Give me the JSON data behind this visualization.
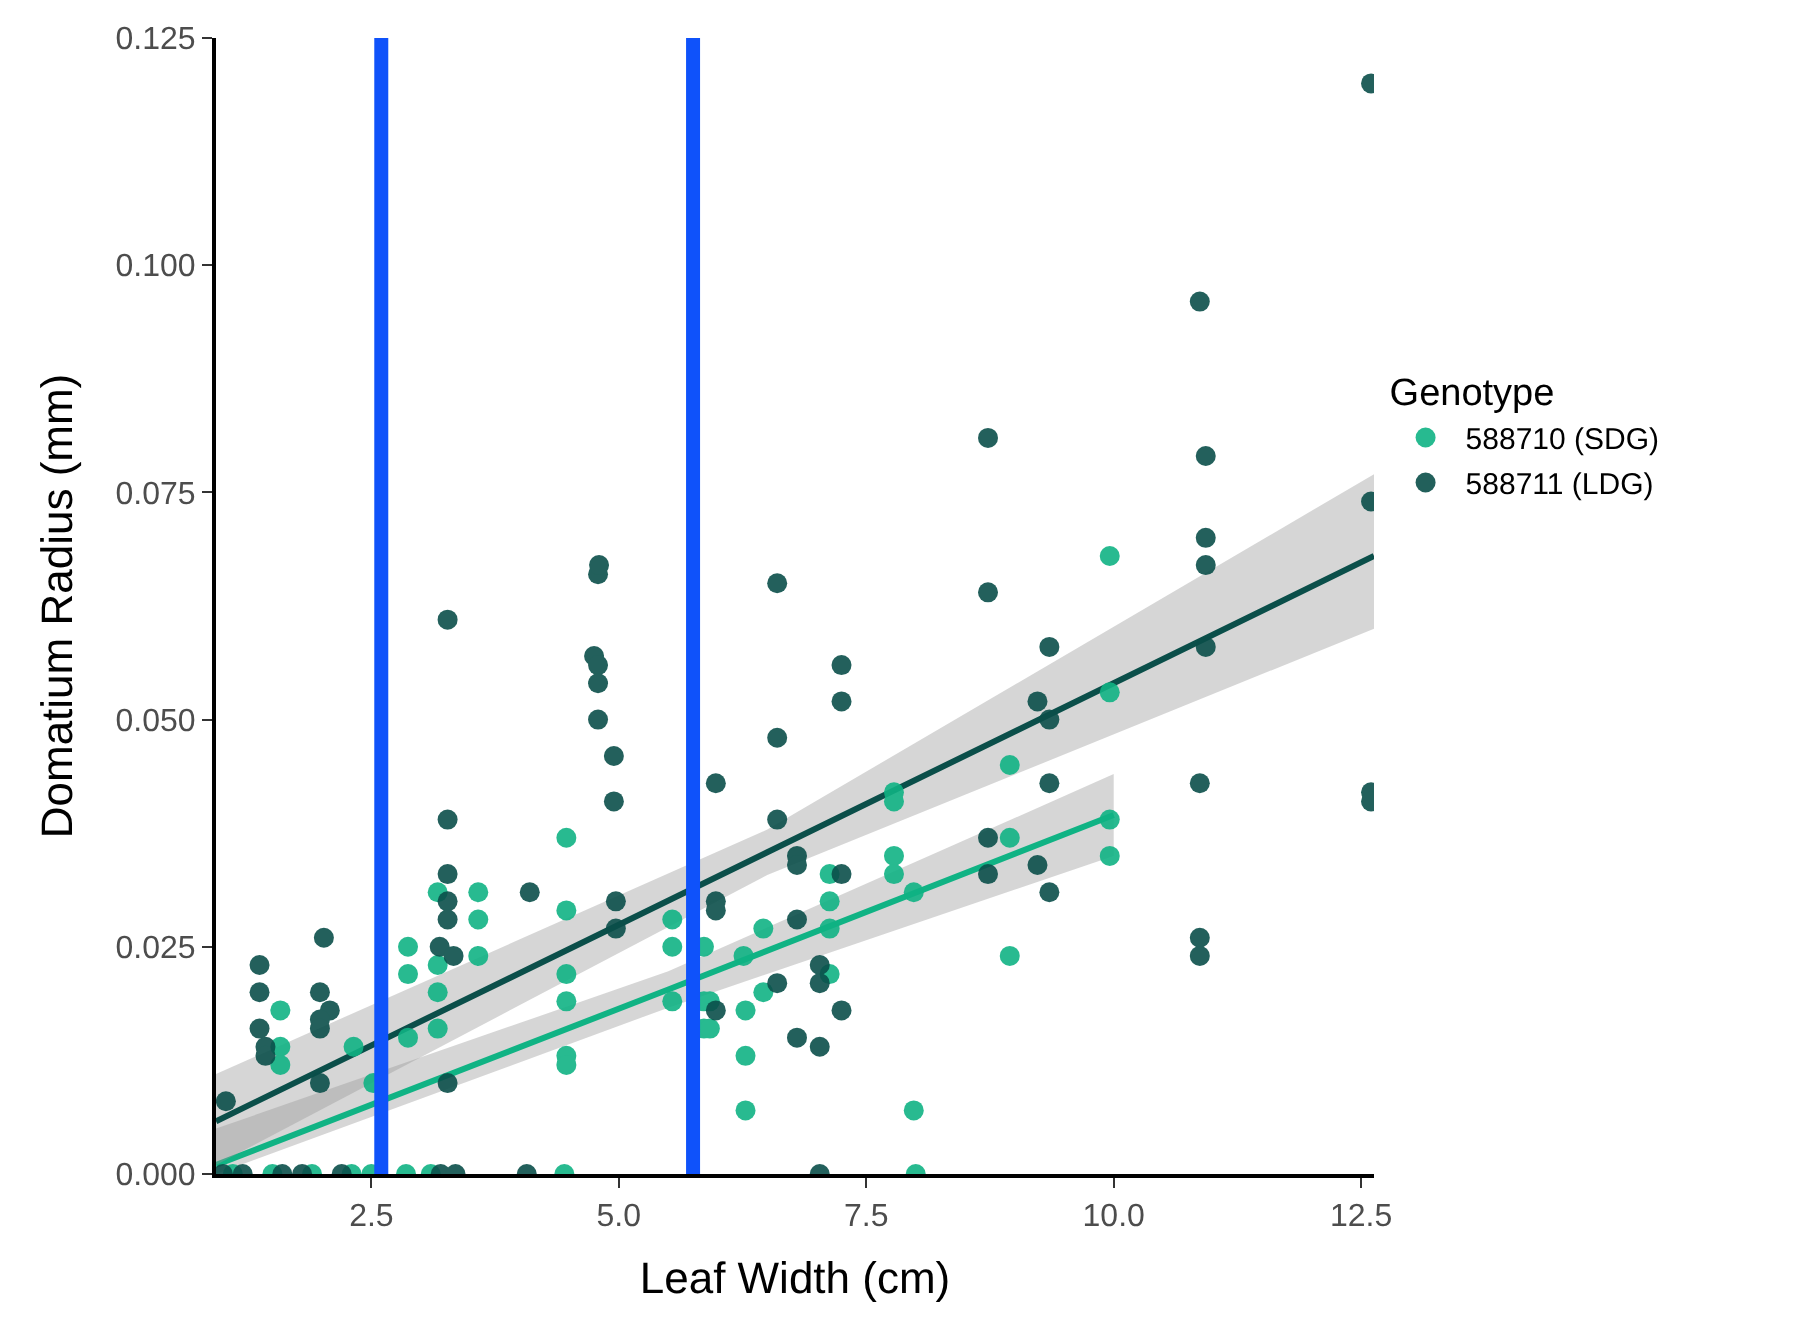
{
  "chart_data": {
    "type": "scatter",
    "xlabel": "Leaf Width (cm)",
    "ylabel": "Domatium Radius (mm)",
    "legend_title": "Genotype",
    "legend": "right",
    "grid": false,
    "marker": "circle",
    "xlim": [
      0.93,
      12.63
    ],
    "ylim": [
      0,
      0.125
    ],
    "xticks": [
      {
        "value": 2.5,
        "label": "2.5"
      },
      {
        "value": 5,
        "label": "5.0"
      },
      {
        "value": 7.5,
        "label": "7.5"
      },
      {
        "value": 10,
        "label": "10.0"
      },
      {
        "value": 12.5,
        "label": "12.5"
      }
    ],
    "yticks": [
      {
        "value": 0,
        "label": "0.000"
      },
      {
        "value": 0.025,
        "label": "0.025"
      },
      {
        "value": 0.05,
        "label": "0.050"
      },
      {
        "value": 0.075,
        "label": "0.075"
      },
      {
        "value": 0.1,
        "label": "0.100"
      },
      {
        "value": 0.125,
        "label": "0.125"
      }
    ],
    "series": [
      {
        "name": "588710 (SDG)",
        "color": "#10b384",
        "x": [
          1.1,
          1.5,
          1.9,
          2.3,
          2.5,
          2.85,
          3.1,
          4.45,
          8.0,
          1.58,
          1.58,
          1.58,
          2.32,
          2.52,
          2.87,
          2.87,
          2.87,
          3.17,
          3.17,
          3.17,
          3.17,
          3.58,
          3.58,
          3.58,
          4.47,
          4.47,
          4.47,
          4.47,
          4.47,
          4.47,
          5.54,
          5.54,
          5.54,
          5.86,
          5.86,
          5.86,
          6.28,
          6.28,
          6.28,
          6.46,
          6.46,
          6.26,
          5.92,
          5.92,
          7.13,
          7.13,
          7.13,
          7.13,
          7.78,
          7.78,
          7.78,
          7.78,
          7.98,
          7.98,
          8.95,
          8.95,
          8.95,
          9.96,
          9.96,
          9.96,
          9.96
        ],
        "values": [
          0,
          0,
          0,
          0,
          0,
          0,
          0,
          0,
          0,
          0.018,
          0.014,
          0.012,
          0.014,
          0.01,
          0.025,
          0.022,
          0.015,
          0.031,
          0.023,
          0.02,
          0.016,
          0.031,
          0.028,
          0.024,
          0.037,
          0.029,
          0.022,
          0.019,
          0.013,
          0.012,
          0.028,
          0.025,
          0.019,
          0.025,
          0.019,
          0.016,
          0.018,
          0.013,
          0.007,
          0.027,
          0.02,
          0.024,
          0.016,
          0.019,
          0.033,
          0.03,
          0.027,
          0.022,
          0.042,
          0.041,
          0.035,
          0.033,
          0.031,
          0.007,
          0.045,
          0.037,
          0.024,
          0.068,
          0.053,
          0.039,
          0.035
        ]
      },
      {
        "name": "588711 (LDG)",
        "color": "#0b4f4a",
        "x": [
          1.0,
          1.2,
          1.6,
          1.8,
          2.2,
          3.2,
          3.35,
          4.07,
          7.03,
          1.03,
          1.37,
          1.37,
          1.37,
          1.43,
          1.43,
          2.02,
          1.98,
          2.08,
          1.98,
          1.98,
          1.98,
          3.27,
          3.27,
          3.27,
          3.27,
          3.27,
          3.19,
          3.33,
          3.27,
          4.1,
          4.79,
          4.8,
          4.75,
          4.79,
          4.79,
          4.79,
          4.95,
          4.95,
          4.97,
          4.97,
          5.98,
          5.98,
          5.98,
          5.98,
          6.6,
          6.6,
          6.6,
          6.6,
          6.8,
          6.8,
          6.8,
          6.8,
          7.03,
          7.03,
          7.03,
          7.25,
          7.25,
          7.25,
          7.25,
          8.73,
          8.73,
          8.73,
          8.73,
          9.23,
          9.23,
          9.35,
          9.35,
          9.35,
          9.35,
          10.87,
          10.93,
          10.93,
          10.93,
          10.93,
          10.87,
          10.87,
          10.87,
          12.6,
          12.6,
          12.6,
          12.6
        ],
        "values": [
          0,
          0,
          0,
          0,
          0,
          0,
          0,
          0,
          0,
          0.008,
          0.023,
          0.02,
          0.016,
          0.014,
          0.013,
          0.026,
          0.02,
          0.018,
          0.017,
          0.016,
          0.01,
          0.061,
          0.039,
          0.033,
          0.03,
          0.028,
          0.025,
          0.024,
          0.01,
          0.031,
          0.066,
          0.067,
          0.057,
          0.056,
          0.054,
          0.05,
          0.046,
          0.041,
          0.03,
          0.027,
          0.043,
          0.03,
          0.029,
          0.018,
          0.065,
          0.048,
          0.039,
          0.021,
          0.035,
          0.034,
          0.028,
          0.015,
          0.023,
          0.021,
          0.014,
          0.056,
          0.052,
          0.033,
          0.018,
          0.081,
          0.064,
          0.037,
          0.033,
          0.052,
          0.034,
          0.058,
          0.05,
          0.043,
          0.031,
          0.096,
          0.079,
          0.07,
          0.067,
          0.058,
          0.043,
          0.026,
          0.024,
          0.12,
          0.074,
          0.042,
          0.041
        ]
      },
      {
        "type": "line",
        "marker": "none",
        "color": "#10b384",
        "x": [
          0.93,
          5.5,
          10.0
        ],
        "values": [
          0.001,
          0.0203,
          0.0395
        ],
        "lower": [
          0.0,
          0.0183,
          0.035
        ],
        "upper": [
          0.005,
          0.0223,
          0.044
        ]
      },
      {
        "type": "line",
        "marker": "none",
        "color": "#0b4f4a",
        "x": [
          0.93,
          6.5,
          12.63
        ],
        "values": [
          0.0058,
          0.0354,
          0.068
        ],
        "lower": [
          0.001,
          0.0329,
          0.06
        ],
        "upper": [
          0.011,
          0.0379,
          0.077
        ]
      }
    ],
    "ref_lines": [
      {
        "axis": "x",
        "value": 2.6,
        "color": "#0f52fa",
        "line_style": "solid"
      },
      {
        "axis": "x",
        "value": 5.75,
        "color": "#0f52fa",
        "line_style": "solid"
      }
    ]
  }
}
